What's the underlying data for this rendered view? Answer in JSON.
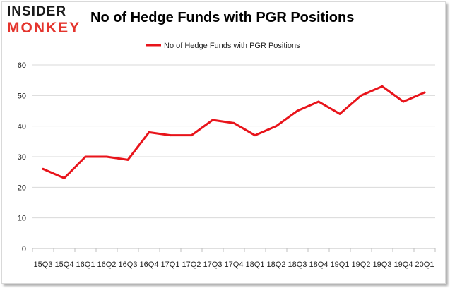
{
  "logo": {
    "top_text": "INSIDER",
    "bottom_text": "MONKEY"
  },
  "title": "No of Hedge Funds with PGR Positions",
  "colors": {
    "series": "#e8141b",
    "grid": "#d9d9d9",
    "brand_red": "#e4342d",
    "brand_dark": "#1a1a1a"
  },
  "chart_data": {
    "type": "line",
    "title": "No of Hedge Funds with PGR Positions",
    "xlabel": "",
    "ylabel": "",
    "ylim": [
      0,
      60
    ],
    "yticks": [
      0,
      10,
      20,
      30,
      40,
      50,
      60
    ],
    "grid": true,
    "legend": "top-center",
    "categories": [
      "15Q3",
      "15Q4",
      "16Q1",
      "16Q2",
      "16Q3",
      "16Q4",
      "17Q1",
      "17Q2",
      "17Q3",
      "17Q4",
      "18Q1",
      "18Q2",
      "18Q3",
      "18Q4",
      "19Q1",
      "19Q2",
      "19Q3",
      "19Q4",
      "20Q1"
    ],
    "series": [
      {
        "name": "No of Hedge Funds with PGR Positions",
        "values": [
          26,
          23,
          30,
          30,
          29,
          38,
          37,
          37,
          42,
          41,
          37,
          40,
          45,
          48,
          44,
          50,
          53,
          48,
          51
        ]
      }
    ]
  }
}
